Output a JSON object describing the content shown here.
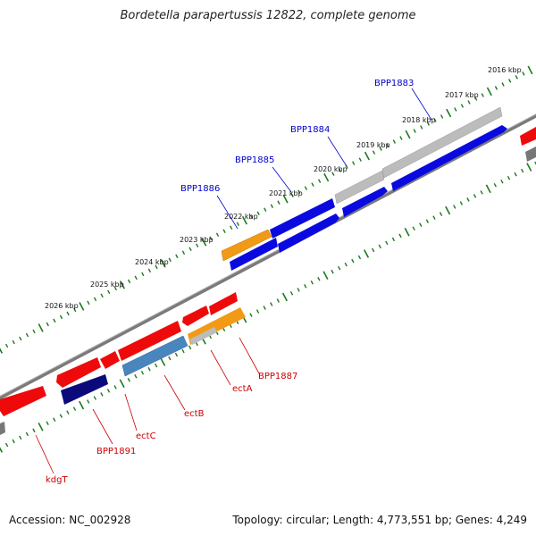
{
  "title": "Bordetella parapertussis 12822, complete genome",
  "footer": {
    "accession": "Accession: NC_002928",
    "summary": "Topology: circular; Length: 4,773,551 bp; Genes: 4,249"
  },
  "scale_ticks": [
    "2016 kbp",
    "2017 kbp",
    "2018 kbp",
    "2019 kbp",
    "2020 kbp",
    "2021 kbp",
    "2022 kbp",
    "2023 kbp",
    "2024 kbp",
    "2025 kbp",
    "2026 kbp"
  ],
  "forward_labels": [
    "BPP1883",
    "BPP1884",
    "BPP1885",
    "BPP1886"
  ],
  "reverse_labels": [
    "BPP1887",
    "ectA",
    "ectB",
    "ectC",
    "BPP1891",
    "kdgT"
  ],
  "colors": {
    "forward_label": "#0000cc",
    "reverse_label": "#cc0000",
    "blue_gene": "#0a0ae0",
    "red_gene": "#ee0a0a",
    "gray_gene": "#bcbcbc",
    "orange_gene": "#f29a16",
    "steelblue_gene": "#4a86be",
    "navy_gene": "#0a0a7a",
    "backbone": "#7a7a7a",
    "tick": "#1a7a1a"
  }
}
